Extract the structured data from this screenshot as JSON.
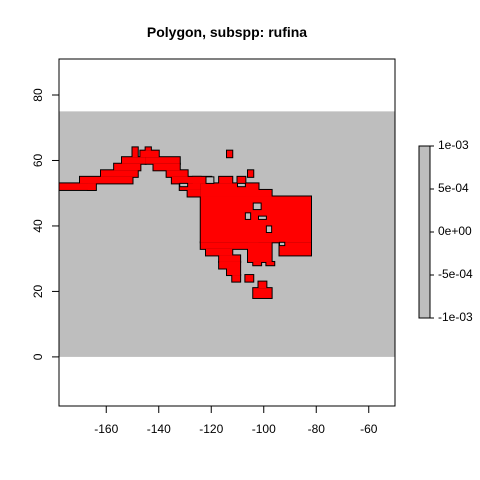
{
  "chart_data": {
    "type": "heatmap",
    "title": "Polygon, subspp: rufina",
    "xlim": [
      -178,
      -50
    ],
    "ylim": [
      -15,
      91
    ],
    "x_ticks": [
      -160,
      -140,
      -120,
      -100,
      -80,
      -60
    ],
    "y_ticks": [
      0,
      20,
      40,
      60,
      80
    ],
    "grid": false,
    "raster_extent": {
      "xmin": -180,
      "xmax": -50,
      "ymin": 0,
      "ymax": 75
    },
    "raster_color": "#bebebe",
    "polygon_fill": "#ff0000",
    "polygon_border": "#000000",
    "polygon_cells": [
      [
        -178,
        51,
        -164,
        53
      ],
      [
        -170,
        53,
        -150,
        55
      ],
      [
        -167,
        51,
        -164,
        53
      ],
      [
        -162,
        55,
        -148,
        57
      ],
      [
        -157,
        57,
        -147,
        59
      ],
      [
        -154,
        59,
        -145,
        61
      ],
      [
        -147,
        61,
        -140,
        63
      ],
      [
        -150,
        61,
        -148,
        64
      ],
      [
        -145,
        63,
        -143,
        64
      ],
      [
        -145,
        59,
        -132,
        61
      ],
      [
        -142,
        57,
        -132,
        59
      ],
      [
        -137,
        55,
        -129,
        57
      ],
      [
        -135,
        53,
        -124,
        55
      ],
      [
        -132,
        51,
        -124,
        53
      ],
      [
        -129,
        49,
        -124,
        51
      ],
      [
        -124,
        35,
        -82,
        49
      ],
      [
        -124,
        49,
        -102,
        53
      ],
      [
        -127,
        53,
        -120,
        55
      ],
      [
        -117,
        53,
        -112,
        55
      ],
      [
        -110,
        53,
        -107,
        55
      ],
      [
        -102,
        49,
        -97,
        51
      ],
      [
        -114,
        61,
        -112,
        63
      ],
      [
        -106,
        55,
        -104,
        57
      ],
      [
        -124,
        33,
        -102,
        35
      ],
      [
        -122,
        31,
        -112,
        33
      ],
      [
        -94,
        31,
        -82,
        35
      ],
      [
        -117,
        29,
        -109,
        31
      ],
      [
        -106,
        29,
        -97,
        35
      ],
      [
        -114,
        25,
        -109,
        29
      ],
      [
        -104,
        28,
        -101,
        29
      ],
      [
        -117,
        27,
        -114,
        29
      ],
      [
        -112,
        23,
        -109,
        25
      ],
      [
        -107,
        23,
        -104,
        25
      ],
      [
        -99,
        28,
        -96,
        29
      ],
      [
        -102,
        21,
        -99,
        23
      ],
      [
        -104,
        18,
        -97,
        21
      ]
    ],
    "polygon_holes": [
      [
        -132,
        52,
        -129,
        53
      ],
      [
        -122,
        53,
        -119,
        55
      ],
      [
        -110,
        52,
        -107,
        53
      ],
      [
        -104,
        45,
        -101,
        47
      ],
      [
        -102,
        42,
        -99,
        43
      ],
      [
        -107,
        42,
        -105,
        44
      ],
      [
        -99,
        38,
        -97,
        40
      ],
      [
        -94,
        34,
        -92,
        35
      ]
    ],
    "legend": {
      "type": "colorbar",
      "placement": "right",
      "labels": [
        "1e-03",
        "5e-04",
        "0e+00",
        "-5e-04",
        "-1e-03"
      ],
      "color": "#bebebe"
    }
  }
}
